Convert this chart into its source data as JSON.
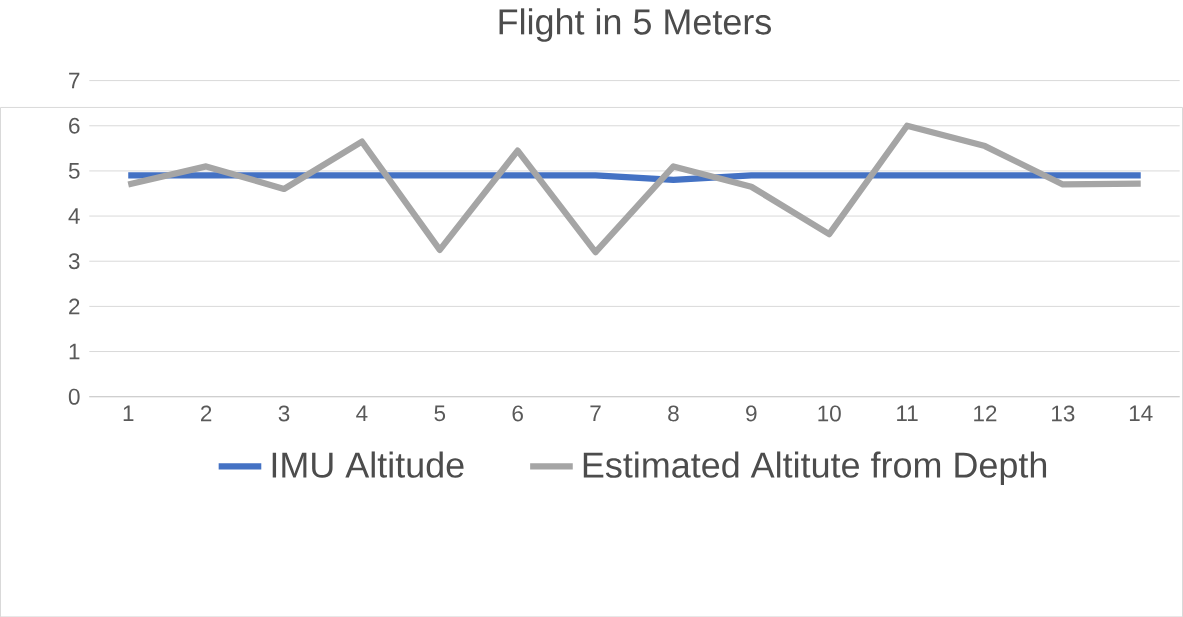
{
  "chart_data": {
    "type": "line",
    "title": "Flight in 5 Meters",
    "categories": [
      "1",
      "2",
      "3",
      "4",
      "5",
      "6",
      "7",
      "8",
      "9",
      "10",
      "11",
      "12",
      "13",
      "14"
    ],
    "series": [
      {
        "name": "IMU Altitude",
        "color": "#4472c4",
        "values": [
          4.9,
          4.9,
          4.9,
          4.9,
          4.9,
          4.9,
          4.9,
          4.8,
          4.9,
          4.9,
          4.9,
          4.9,
          4.9,
          4.9
        ]
      },
      {
        "name": "Estimated Altitute from Depth",
        "color": "#a5a5a5",
        "values": [
          4.7,
          5.1,
          4.6,
          5.65,
          3.25,
          5.45,
          3.2,
          5.1,
          4.65,
          3.6,
          6.0,
          5.55,
          4.7,
          4.72
        ]
      }
    ],
    "ylim": [
      0,
      7
    ],
    "yticks": [
      0,
      1,
      2,
      3,
      4,
      5,
      6,
      7
    ],
    "grid": "y",
    "legend": "bottom",
    "marker": "none",
    "line_style": "solid"
  }
}
